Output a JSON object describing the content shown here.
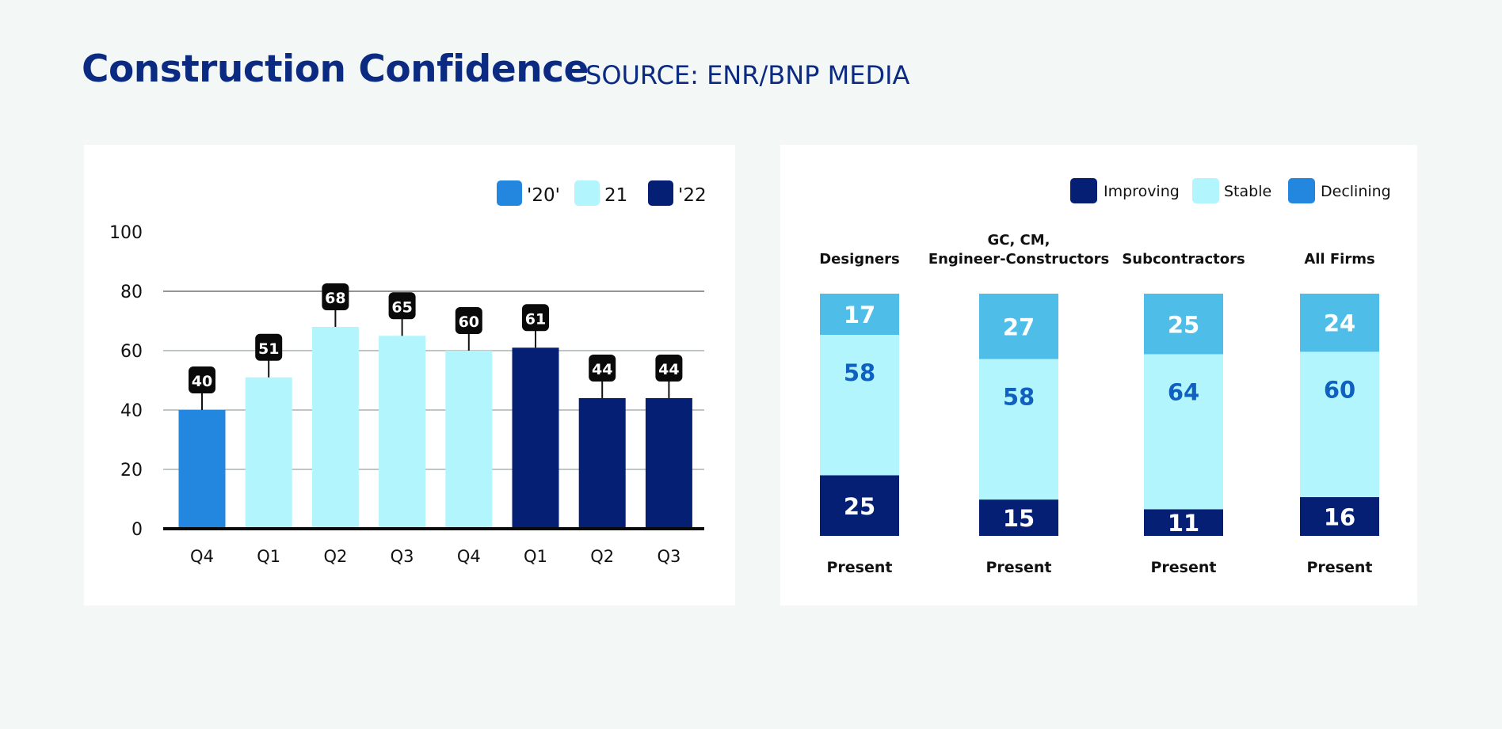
{
  "title": "Construction Confidence",
  "source": "SOURCE: ENR/BNP MEDIA",
  "chart_data": [
    {
      "type": "bar",
      "categories": [
        "Q4",
        "Q1",
        "Q2",
        "Q3",
        "Q4",
        "Q1",
        "Q2",
        "Q3"
      ],
      "values": [
        40,
        51,
        68,
        65,
        60,
        61,
        44,
        44
      ],
      "data_labels": [
        "40",
        "51",
        "68",
        "65",
        "60",
        "61",
        "44",
        "44"
      ],
      "bar_series": [
        "'20'",
        "21",
        "21",
        "21",
        "21",
        "'22",
        "'22",
        "'22"
      ],
      "legend": [
        {
          "name": "'20'",
          "color": "#2387e0"
        },
        {
          "name": "21",
          "color": "#b3f5fc"
        },
        {
          "name": "'22",
          "color": "#041f73"
        }
      ],
      "legend_position": "top-right",
      "ylim": [
        0,
        100
      ],
      "yticks": [
        "0",
        "20",
        "40",
        "60",
        "80",
        "100"
      ],
      "grid": true,
      "xlabel": "",
      "ylabel": ""
    },
    {
      "type": "bar",
      "stacked": true,
      "categories": [
        [
          "Designers"
        ],
        [
          "GC, CM,",
          "Engineer-Constructors"
        ],
        [
          "Subcontractors"
        ],
        [
          "All Firms"
        ]
      ],
      "sub_label": "Present",
      "series": [
        {
          "name": "Improving",
          "color": "#041f73",
          "values": [
            25,
            15,
            11,
            16
          ]
        },
        {
          "name": "Stable",
          "color": "#b3f5fc",
          "values": [
            58,
            58,
            64,
            60
          ]
        },
        {
          "name": "Declining",
          "color": "#2387e0",
          "segment_color": "#4ebee9",
          "values": [
            17,
            27,
            25,
            24
          ]
        }
      ],
      "legend_position": "top-right"
    }
  ]
}
